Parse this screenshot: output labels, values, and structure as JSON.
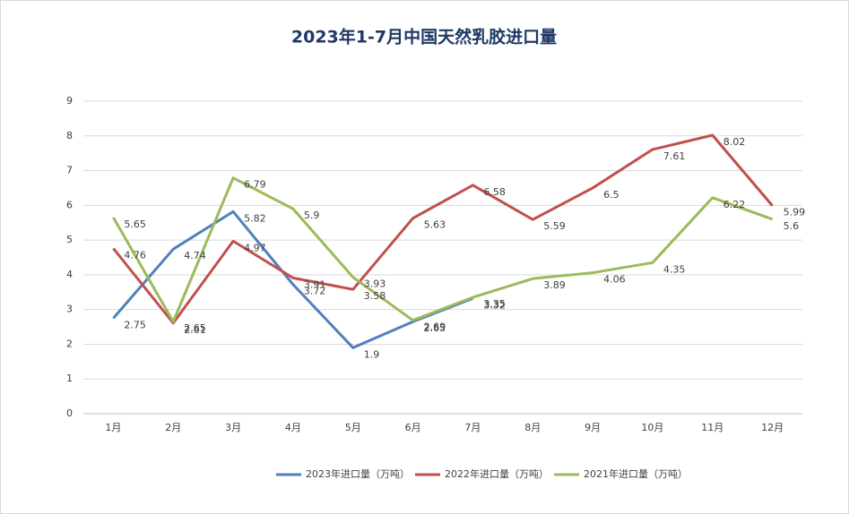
{
  "chart_data": {
    "type": "line",
    "title": "2023年1-7月中国天然乳胶进口量",
    "categories": [
      "1月",
      "2月",
      "3月",
      "4月",
      "5月",
      "6月",
      "7月",
      "8月",
      "9月",
      "10月",
      "11月",
      "12月"
    ],
    "series": [
      {
        "name": "2023年进口量（万吨）",
        "color": "#4f81bd",
        "values": [
          2.75,
          4.74,
          5.82,
          3.72,
          1.9,
          2.65,
          3.32,
          null,
          null,
          null,
          null,
          null
        ]
      },
      {
        "name": "2022年进口量（万吨）",
        "color": "#c0504d",
        "values": [
          4.76,
          2.61,
          4.97,
          3.91,
          3.58,
          5.63,
          6.58,
          5.59,
          6.5,
          7.61,
          8.02,
          5.99
        ]
      },
      {
        "name": "2021年进口量（万吨）",
        "color": "#9bbb59",
        "values": [
          5.65,
          2.65,
          6.79,
          5.9,
          3.93,
          2.69,
          3.35,
          3.89,
          4.06,
          4.35,
          6.22,
          5.6
        ]
      }
    ],
    "ylim": [
      0,
      9
    ],
    "yticks": [
      0,
      1,
      2,
      3,
      4,
      5,
      6,
      7,
      8,
      9
    ],
    "grid": true,
    "legend": "bottom"
  }
}
